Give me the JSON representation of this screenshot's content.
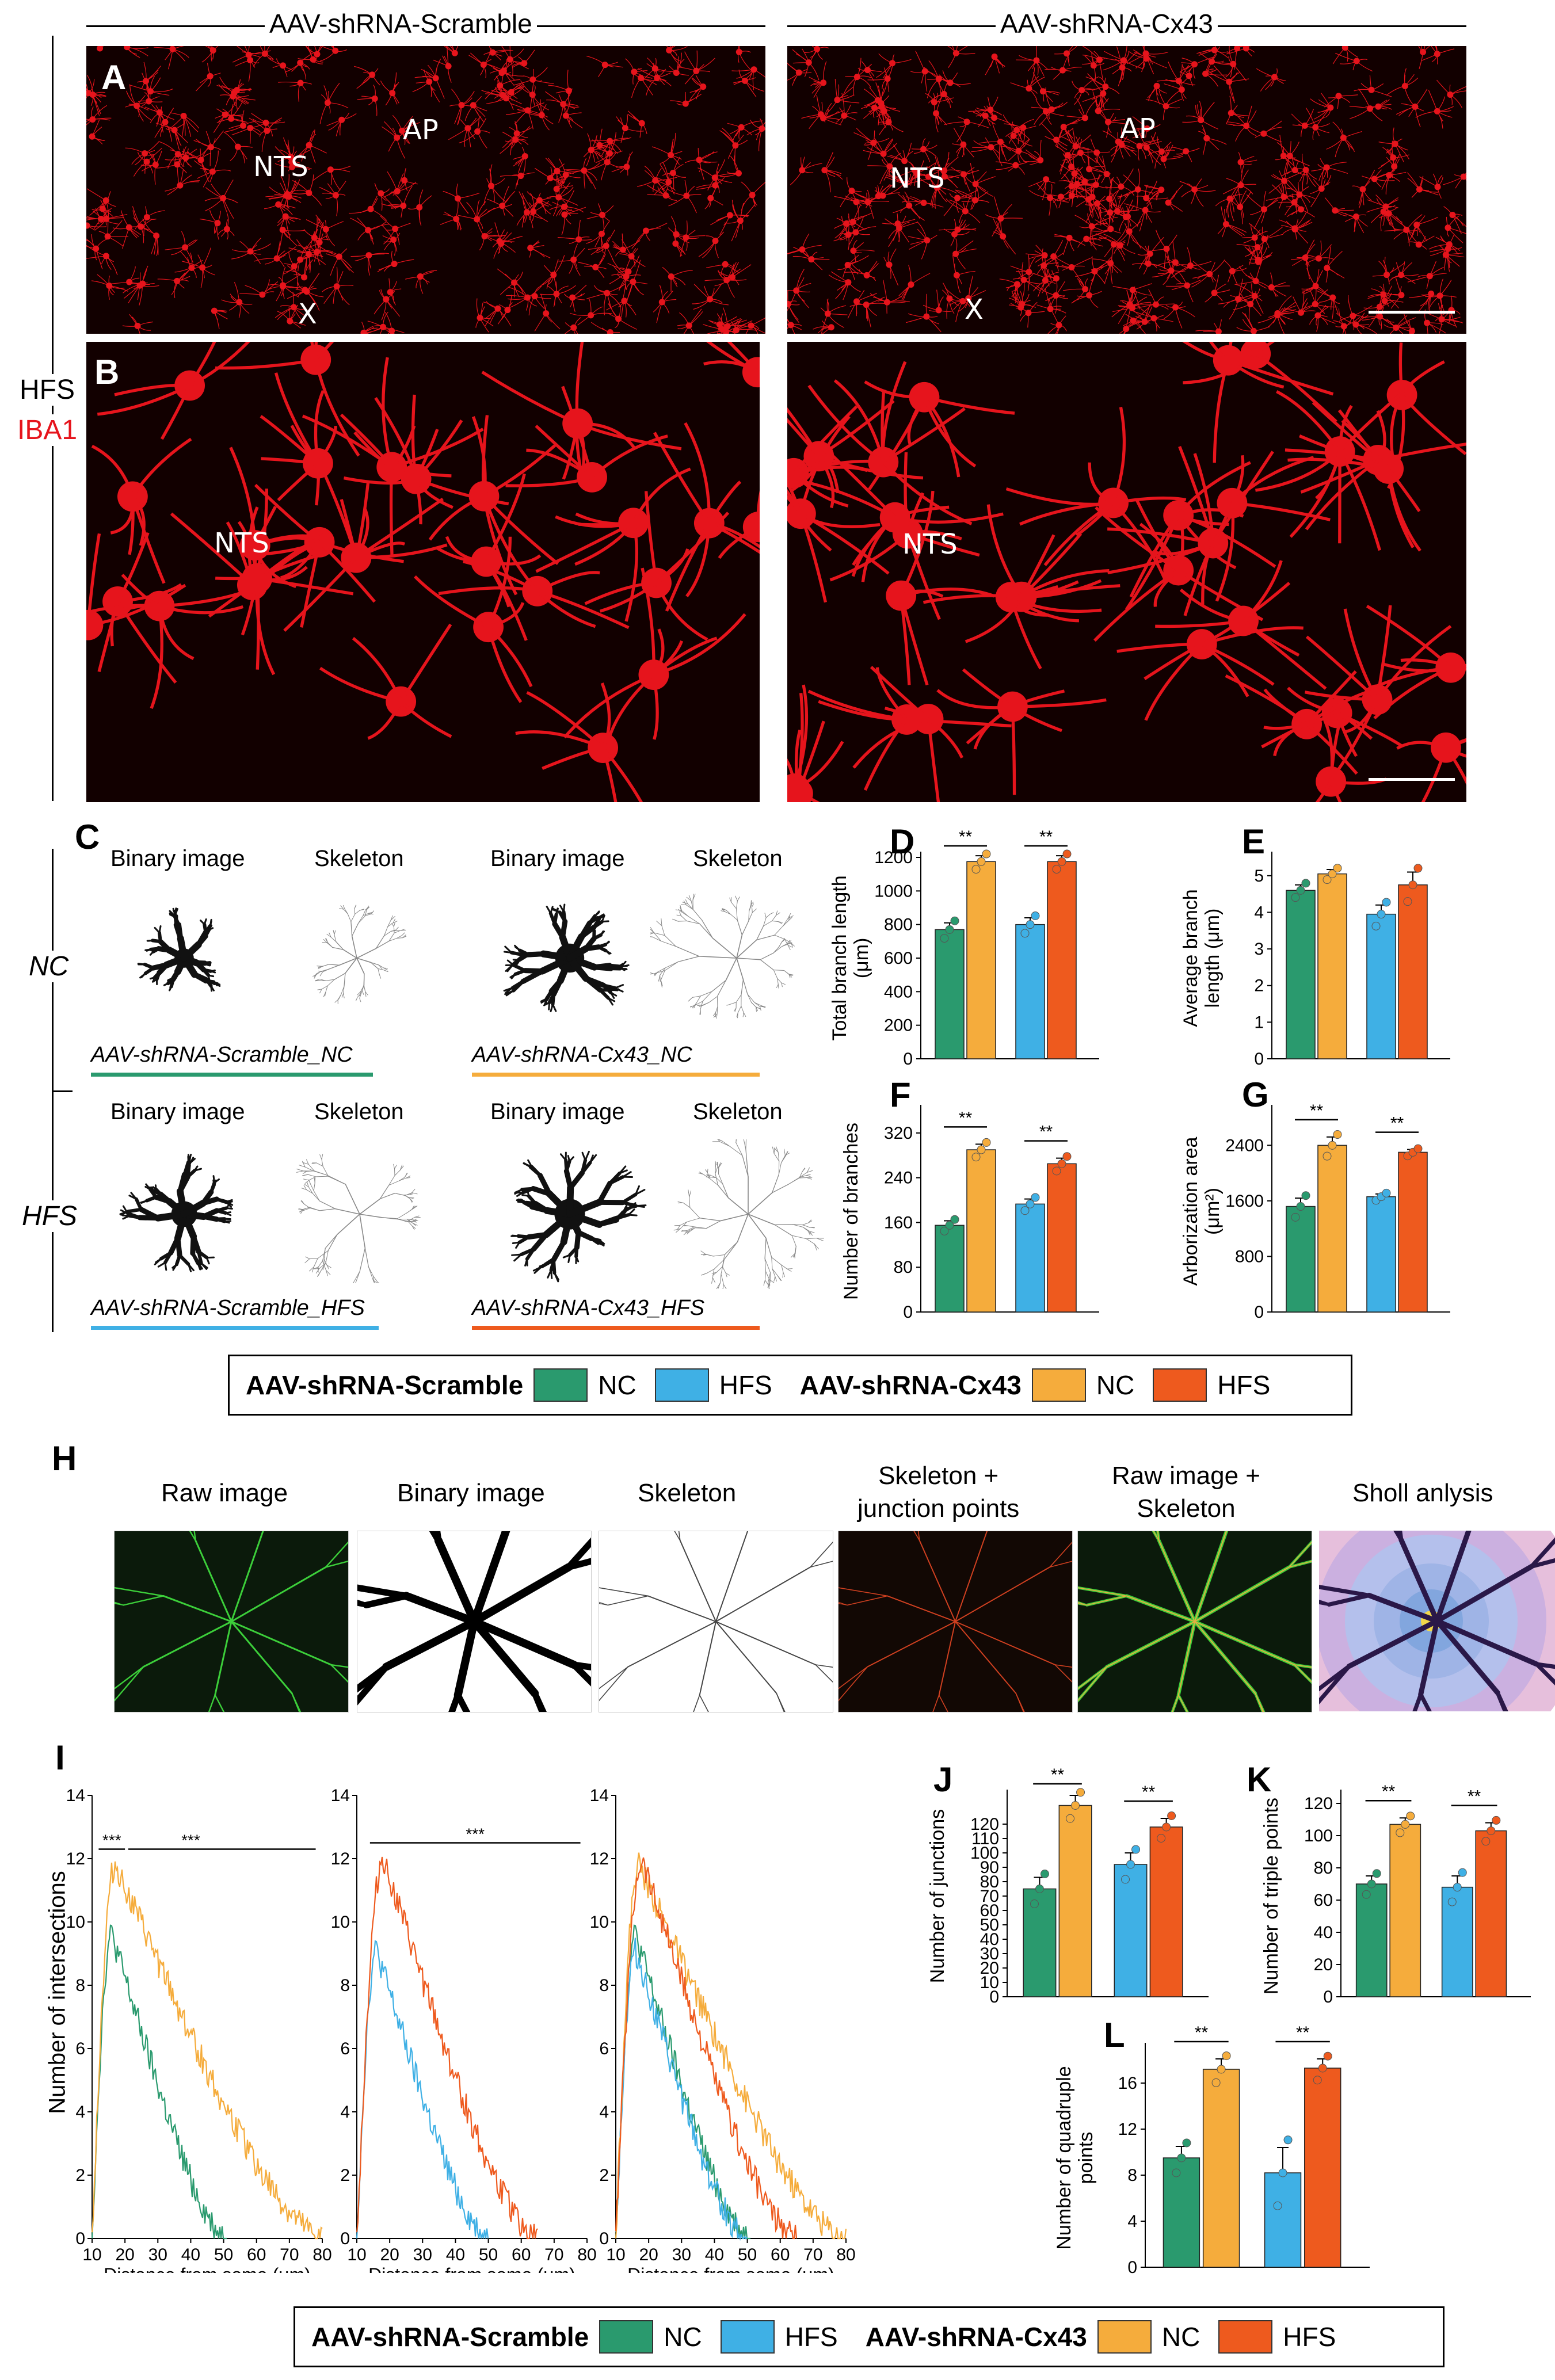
{
  "top": {
    "group_left": "AAV-shRNA-Scramble",
    "group_right": "AAV-shRNA-Cx43",
    "side_label_1": "HFS",
    "side_label_2": "IBA1",
    "panel_a": "A",
    "panel_b": "B",
    "a_left_labels": [
      "NTS",
      "AP",
      "X"
    ],
    "a_right_labels": [
      "NTS",
      "AP",
      "X"
    ],
    "b_left_label": "NTS",
    "b_right_label": "NTS"
  },
  "panel_c": {
    "letter": "C",
    "col_binary": "Binary image",
    "col_skeleton": "Skeleton",
    "row_nc": "NC",
    "row_hfs": "HFS",
    "caption_1": "AAV-shRNA-Scramble_NC",
    "caption_2": "AAV-shRNA-Cx43_NC",
    "caption_3": "AAV-shRNA-Scramble_HFS",
    "caption_4": "AAV-shRNA-Cx43_HFS"
  },
  "colors": {
    "scr_nc": "#2a9a6e",
    "scr_hfs": "#3fb0e5",
    "cx_nc": "#f5ac3c",
    "cx_hfs": "#ee5a1e",
    "micro_red": "#e6141c",
    "micro_green": "#3ccf3a"
  },
  "legend": {
    "group1": "AAV-shRNA-Scramble",
    "group2": "AAV-shRNA-Cx43",
    "nc": "NC",
    "hfs": "HFS"
  },
  "panel_h": {
    "letter": "H",
    "titles": [
      "Raw image",
      "Binary image",
      "Skeleton",
      "Skeleton +\njunction points",
      "Raw image +\nSkeleton",
      "Sholl anlysis"
    ]
  },
  "panel_i": {
    "letter": "I",
    "ylabel": "Number of intersections",
    "xlabel": "Distance from soma (μm)",
    "sig1": "***",
    "sig2": "***",
    "sig3": "***"
  },
  "chart_data": [
    {
      "id": "D",
      "type": "bar",
      "ylabel": "Total branch length\n(μm)",
      "ylim": [
        0,
        1200
      ],
      "yticks": [
        0,
        200,
        400,
        600,
        800,
        1000,
        1200
      ],
      "values": [
        770,
        1175,
        800,
        1175
      ],
      "errors": [
        40,
        35,
        40,
        35
      ],
      "sig": [
        "**",
        "**"
      ]
    },
    {
      "id": "E",
      "type": "bar",
      "ylabel": "Average branch\nlength (μm)",
      "ylim": [
        0,
        5.5
      ],
      "yticks": [
        0,
        1,
        2,
        3,
        4,
        5
      ],
      "values": [
        4.6,
        5.05,
        3.95,
        4.75
      ],
      "errors": [
        0.15,
        0.12,
        0.25,
        0.35
      ],
      "sig": []
    },
    {
      "id": "F",
      "type": "bar",
      "ylabel": "Number of branches",
      "ylim": [
        0,
        360
      ],
      "yticks": [
        0,
        80,
        160,
        240,
        320
      ],
      "values": [
        155,
        290,
        193,
        265
      ],
      "errors": [
        8,
        10,
        9,
        10
      ],
      "sig": [
        "**",
        "**"
      ]
    },
    {
      "id": "G",
      "type": "bar",
      "ylabel": "Arborization area\n(μm²)",
      "ylim": [
        0,
        2900
      ],
      "yticks": [
        0,
        800,
        1600,
        2400
      ],
      "values": [
        1520,
        2400,
        1660,
        2300
      ],
      "errors": [
        120,
        120,
        40,
        40
      ],
      "sig": [
        "**",
        "**"
      ]
    },
    {
      "id": "J",
      "type": "bar",
      "ylabel": "Number of junctions",
      "ylim": [
        0,
        140
      ],
      "yticks": [
        0,
        10,
        20,
        30,
        40,
        50,
        60,
        70,
        80,
        90,
        100,
        110,
        120
      ],
      "values": [
        75,
        133,
        92,
        118
      ],
      "errors": [
        8,
        7,
        8,
        6
      ],
      "sig": [
        "**",
        "**"
      ]
    },
    {
      "id": "K",
      "type": "bar",
      "ylabel": "Number of triple points",
      "ylim": [
        0,
        125
      ],
      "yticks": [
        0,
        20,
        40,
        60,
        80,
        100,
        120
      ],
      "values": [
        70,
        107,
        68,
        103
      ],
      "errors": [
        5,
        4,
        7,
        5
      ],
      "sig": [
        "**",
        "**"
      ]
    },
    {
      "id": "L",
      "type": "bar",
      "ylabel": "Number of quadruple\npoints",
      "ylim": [
        0,
        19
      ],
      "yticks": [
        0,
        4,
        8,
        12,
        16
      ],
      "values": [
        9.5,
        17.2,
        8.2,
        17.3
      ],
      "errors": [
        1.0,
        0.9,
        2.2,
        0.8
      ],
      "sig": [
        "**",
        "**"
      ]
    },
    {
      "id": "I1",
      "type": "line",
      "xlabel": "Distance from soma (μm)",
      "xlim": [
        10,
        80
      ],
      "ylim": [
        0,
        14
      ],
      "xticks": [
        10,
        20,
        30,
        40,
        50,
        60,
        70,
        80
      ],
      "yticks": [
        0,
        2,
        4,
        6,
        8,
        10,
        12,
        14
      ],
      "series": [
        {
          "color": "scr_nc",
          "peak": 9.6,
          "peak_x": 16,
          "end": 51
        },
        {
          "color": "cx_nc",
          "peak": 11.8,
          "peak_x": 17,
          "end": 80
        }
      ]
    },
    {
      "id": "I2",
      "type": "line",
      "xlabel": "Distance from soma (μm)",
      "xlim": [
        10,
        80
      ],
      "ylim": [
        0,
        14
      ],
      "xticks": [
        10,
        20,
        30,
        40,
        50,
        60,
        70,
        80
      ],
      "yticks": [
        0,
        2,
        4,
        6,
        8,
        10,
        12,
        14
      ],
      "series": [
        {
          "color": "scr_hfs",
          "peak": 9.1,
          "peak_x": 16,
          "end": 50
        },
        {
          "color": "cx_hfs",
          "peak": 12.0,
          "peak_x": 18,
          "end": 65
        }
      ]
    },
    {
      "id": "I3",
      "type": "line",
      "xlabel": "Distance from soma (μm)",
      "xlim": [
        10,
        80
      ],
      "ylim": [
        0,
        14
      ],
      "xticks": [
        10,
        20,
        30,
        40,
        50,
        60,
        70,
        80
      ],
      "yticks": [
        0,
        2,
        4,
        6,
        8,
        10,
        12,
        14
      ],
      "series": [
        {
          "color": "scr_nc",
          "peak": 9.6,
          "peak_x": 16,
          "end": 51
        },
        {
          "color": "scr_hfs",
          "peak": 9.1,
          "peak_x": 16,
          "end": 50
        },
        {
          "color": "cx_nc",
          "peak": 11.8,
          "peak_x": 17,
          "end": 80
        },
        {
          "color": "cx_hfs",
          "peak": 12.0,
          "peak_x": 18,
          "end": 65
        }
      ]
    }
  ]
}
